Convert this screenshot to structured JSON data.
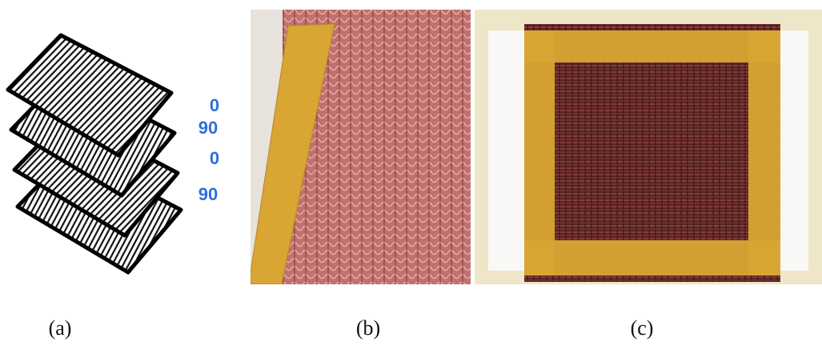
{
  "panels": [
    {
      "caption": "(a)",
      "layer_labels": [
        "0",
        "90",
        "0",
        "90"
      ]
    },
    {
      "caption": "(b)"
    },
    {
      "caption": "(c)"
    }
  ]
}
